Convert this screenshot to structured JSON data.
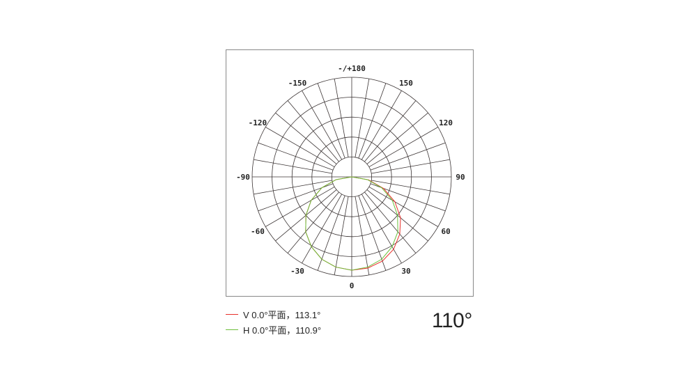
{
  "chart_data": {
    "type": "polar",
    "angle_ticks": [
      "-/+180",
      "150",
      "120",
      "90",
      "60",
      "30",
      "0",
      "-30",
      "-60",
      "-90",
      "-120",
      "-150"
    ],
    "angle_tick_values": [
      180,
      150,
      120,
      90,
      60,
      30,
      0,
      -30,
      -60,
      -90,
      -120,
      -150
    ],
    "spoke_step_deg": 10,
    "rings": 5,
    "grid": true,
    "angles": [
      -90,
      -80,
      -70,
      -60,
      -50,
      -40,
      -30,
      -20,
      -10,
      0,
      10,
      20,
      30,
      40,
      50,
      60,
      70,
      80,
      90
    ],
    "series": [
      {
        "name": "V 0.0°平面，113.1°",
        "color": "#e8302a",
        "values": [
          0,
          0.16,
          0.32,
          0.47,
          0.6,
          0.72,
          0.81,
          0.88,
          0.92,
          0.937,
          0.93,
          0.9,
          0.84,
          0.75,
          0.64,
          0.5,
          0.34,
          0.17,
          0
        ]
      },
      {
        "name": "H 0.0°平面，110.9°",
        "color": "#6cbf3a",
        "values": [
          0,
          0.16,
          0.32,
          0.47,
          0.6,
          0.72,
          0.81,
          0.88,
          0.92,
          0.937,
          0.92,
          0.88,
          0.81,
          0.72,
          0.6,
          0.47,
          0.32,
          0.16,
          0
        ]
      }
    ]
  },
  "legend": [
    {
      "label": "V 0.0°平面，113.1°",
      "color": "#e8302a"
    },
    {
      "label": "H 0.0°平面，110.9°",
      "color": "#6cbf3a"
    }
  ],
  "beam_angle": "110°"
}
